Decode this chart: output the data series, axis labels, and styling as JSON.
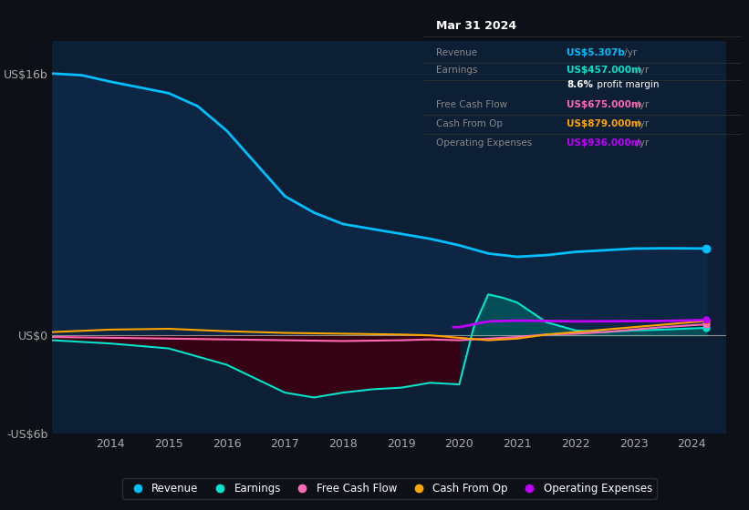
{
  "bg_color": "#0d1117",
  "plot_bg_color": "#0d1f35",
  "grid_color": "#1e3a5f",
  "revenue_color": "#00bfff",
  "earnings_color": "#00e5cc",
  "free_cash_flow_color": "#ff69b4",
  "cash_from_op_color": "#ffa500",
  "operating_expenses_color": "#c000ff",
  "ylim": [
    -6,
    18
  ],
  "yticks": [
    -6,
    0,
    16
  ],
  "ytick_labels": [
    "-US$6b",
    "US$0",
    "US$16b"
  ],
  "xticks": [
    2014,
    2015,
    2016,
    2017,
    2018,
    2019,
    2020,
    2021,
    2022,
    2023,
    2024
  ],
  "xtick_labels": [
    "2014",
    "2015",
    "2016",
    "2017",
    "2018",
    "2019",
    "2020",
    "2021",
    "2022",
    "2023",
    "2024"
  ],
  "legend_labels": [
    "Revenue",
    "Earnings",
    "Free Cash Flow",
    "Cash From Op",
    "Operating Expenses"
  ],
  "legend_colors": [
    "#00bfff",
    "#00e5cc",
    "#ff69b4",
    "#ffa500",
    "#c000ff"
  ],
  "info_box": {
    "title": "Mar 31 2024",
    "rows": [
      {
        "label": "Revenue",
        "value": "US$5.307b",
        "value_color": "#00bfff"
      },
      {
        "label": "Earnings",
        "value": "US$457.000m",
        "value_color": "#00e5cc"
      },
      {
        "label": "",
        "value": "8.6% profit margin",
        "value_color": "#ffffff"
      },
      {
        "label": "Free Cash Flow",
        "value": "US$675.000m",
        "value_color": "#ff69b4"
      },
      {
        "label": "Cash From Op",
        "value": "US$879.000m",
        "value_color": "#ffa500"
      },
      {
        "label": "Operating Expenses",
        "value": "US$936.000m",
        "value_color": "#c000ff"
      }
    ]
  }
}
